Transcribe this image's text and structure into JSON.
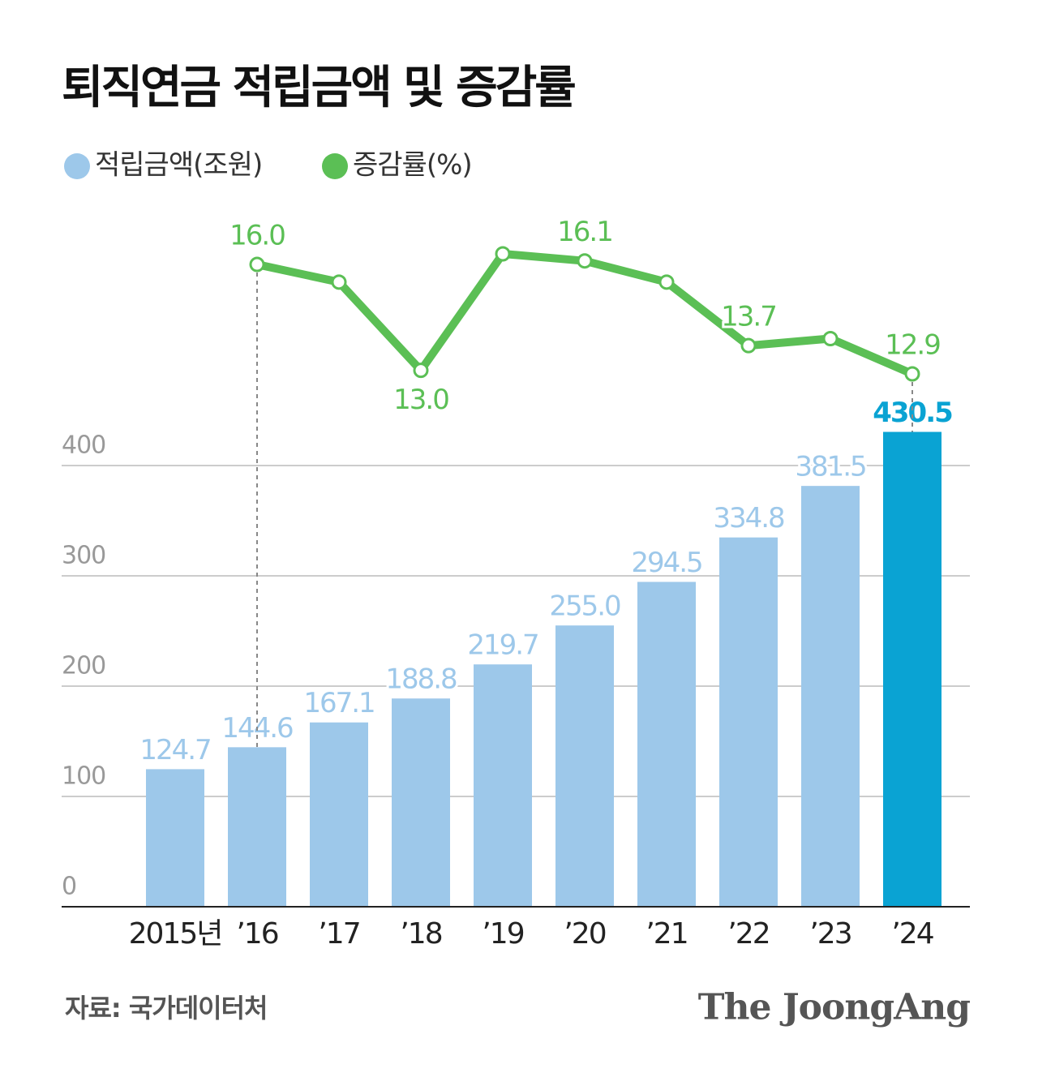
{
  "chart_data": {
    "type": "combo",
    "title": "퇴직연금 적립금액 및 증감률",
    "source": "자료: 국가데이터처",
    "logo": "The JoongAng",
    "categories": [
      "2015년",
      "’16",
      "’17",
      "’18",
      "’19",
      "’20",
      "’21",
      "’22",
      "’23",
      "’24"
    ],
    "series": [
      {
        "name": "적립금액(조원)",
        "type": "bar",
        "color": "#9dc8ea",
        "highlight_color": "#0aa3d3",
        "values": [
          124.7,
          144.6,
          167.1,
          188.8,
          219.7,
          255.0,
          294.5,
          334.8,
          381.5,
          430.5
        ],
        "value_labels": [
          "124.7",
          "144.6",
          "167.1",
          "188.8",
          "219.7",
          "255.0",
          "294.5",
          "334.8",
          "381.5",
          "430.5"
        ]
      },
      {
        "name": "증감률(%)",
        "type": "line",
        "color": "#5bbf55",
        "values": [
          null,
          16.0,
          15.5,
          13.0,
          16.3,
          16.1,
          15.5,
          13.7,
          13.9,
          12.9
        ],
        "value_labels": [
          null,
          "16.0",
          null,
          "13.0",
          null,
          "16.1",
          null,
          "13.7",
          null,
          "12.9"
        ]
      }
    ],
    "ylim": [
      0,
      450
    ],
    "yticks": [
      0,
      100,
      200,
      300,
      400
    ],
    "grid": true
  }
}
